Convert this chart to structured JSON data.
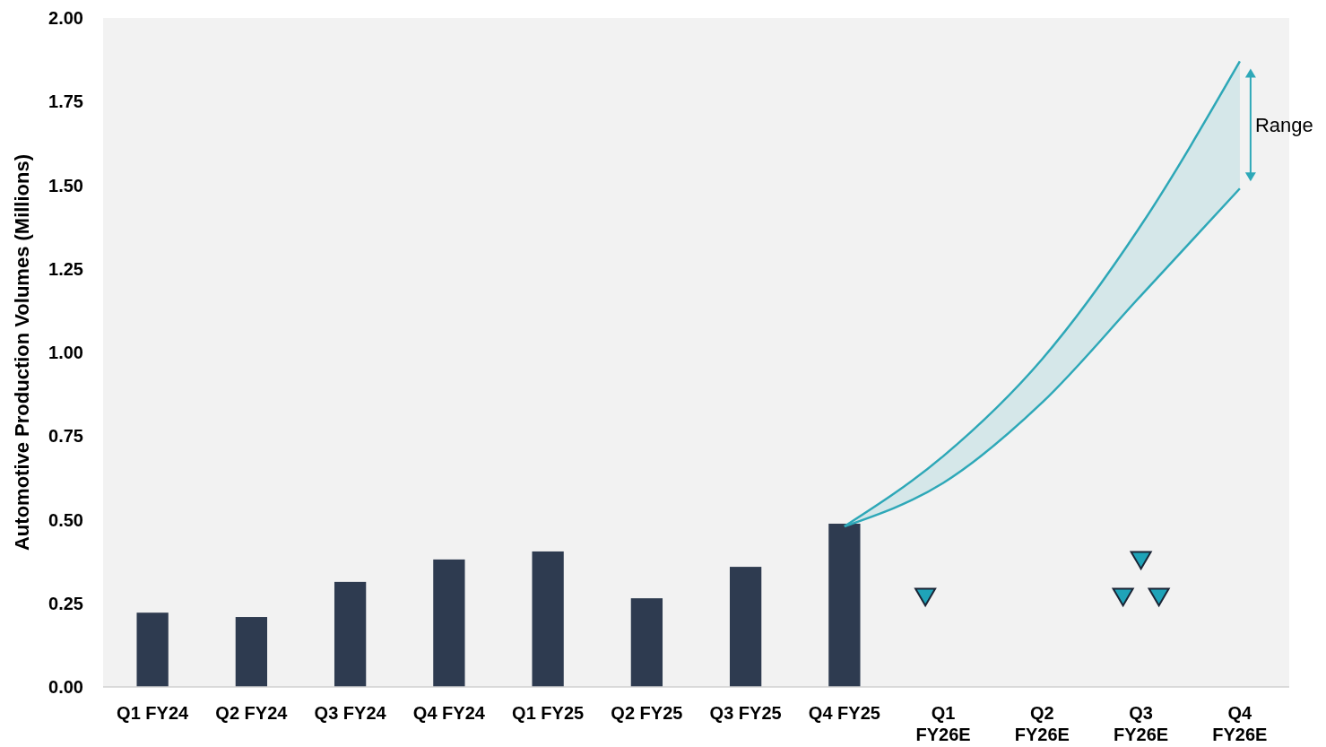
{
  "chart_data": {
    "type": "bar",
    "ylabel": "Automotive Production Volumes (Millions)",
    "categories": [
      "Q1 FY24",
      "Q2 FY24",
      "Q3 FY24",
      "Q4 FY24",
      "Q1 FY25",
      "Q2 FY25",
      "Q3 FY25",
      "Q4 FY25",
      "Q1 FY26E",
      "Q2 FY26E",
      "Q3 FY26E",
      "Q4 FY26E"
    ],
    "ylim": [
      0,
      2
    ],
    "yticks": [
      {
        "value": 0,
        "label": "0.00"
      },
      {
        "value": 0.25,
        "label": "0.25"
      },
      {
        "value": 0.5,
        "label": "0.50"
      },
      {
        "value": 0.75,
        "label": "0.75"
      },
      {
        "value": 1,
        "label": "1.00"
      },
      {
        "value": 1.25,
        "label": "1.25"
      },
      {
        "value": 1.5,
        "label": "1.50"
      },
      {
        "value": 1.75,
        "label": "1.75"
      },
      {
        "value": 2,
        "label": "2.00"
      }
    ],
    "grid": false,
    "series": [
      {
        "color": "#2e3b50",
        "values": [
          0.222,
          0.209,
          0.314,
          0.381,
          0.405,
          0.265,
          0.359,
          0.488,
          null,
          null,
          null,
          null
        ]
      },
      {
        "type": "line",
        "color": "#2ea8b8",
        "values": [
          null,
          null,
          null,
          null,
          null,
          null,
          null,
          0.48,
          0.69,
          0.98,
          1.38,
          1.87
        ]
      },
      {
        "type": "line",
        "color": "#2ea8b8",
        "values": [
          null,
          null,
          null,
          null,
          null,
          null,
          null,
          0.48,
          0.61,
          0.85,
          1.17,
          1.49
        ]
      },
      {
        "type": "scatter",
        "color": "#1fa3b8",
        "marker": "triangle",
        "x": [
          "Q1 FY26E",
          "Q3 FY26E"
        ],
        "values": [
          0.27,
          0.27
        ]
      },
      {
        "type": "scatter",
        "color": "#1fa3b8",
        "marker": "triangle",
        "x": [
          "Q3 FY26E"
        ],
        "values": [
          0.38
        ]
      },
      {
        "type": "scatter",
        "color": "#1fa3b8",
        "marker": "triangle",
        "x": [
          "Q3 FY26E"
        ],
        "values": [
          0.27
        ]
      }
    ],
    "annotations": [
      "Range"
    ]
  }
}
